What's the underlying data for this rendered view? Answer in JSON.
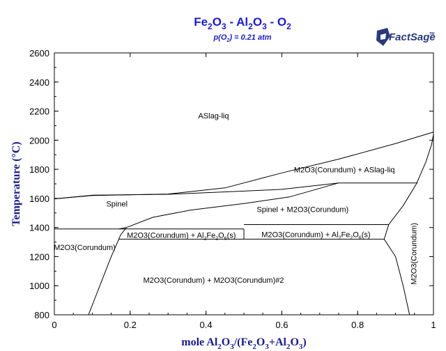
{
  "chart_data": {
    "type": "phase-diagram",
    "title": {
      "parts": [
        {
          "text": "Fe",
          "sub": false
        },
        {
          "text": "2",
          "sub": true
        },
        {
          "text": "O",
          "sub": false
        },
        {
          "text": "3",
          "sub": true
        },
        {
          "text": " - Al",
          "sub": false
        },
        {
          "text": "2",
          "sub": true
        },
        {
          "text": "O",
          "sub": false
        },
        {
          "text": "3",
          "sub": true
        },
        {
          "text": " - O",
          "sub": false
        },
        {
          "text": "2",
          "sub": true
        }
      ]
    },
    "subtitle": {
      "parts": [
        {
          "text": "p(O",
          "sub": false
        },
        {
          "text": "2",
          "sub": true
        },
        {
          "text": ") = 0.21 atm",
          "sub": false
        }
      ]
    },
    "logo": {
      "text": "FactSage",
      "tm": "TM"
    },
    "xlabel": {
      "parts": [
        {
          "text": "mole Al",
          "sub": false
        },
        {
          "text": "2",
          "sub": true
        },
        {
          "text": "O",
          "sub": false
        },
        {
          "text": "3",
          "sub": true
        },
        {
          "text": "/(Fe",
          "sub": false
        },
        {
          "text": "2",
          "sub": true
        },
        {
          "text": "O",
          "sub": false
        },
        {
          "text": "3",
          "sub": true
        },
        {
          "text": "+Al",
          "sub": false
        },
        {
          "text": "2",
          "sub": true
        },
        {
          "text": "O",
          "sub": false
        },
        {
          "text": "3",
          "sub": true
        },
        {
          "text": ")",
          "sub": false
        }
      ]
    },
    "ylabel": "Temperature (°C)",
    "xlim": [
      0,
      1
    ],
    "ylim": [
      800,
      2600
    ],
    "xticks": [
      0,
      0.2,
      0.4,
      0.6,
      0.8,
      1
    ],
    "xtick_labels": [
      "0",
      "0.2",
      "0.4",
      "0.6",
      "0.8",
      "1"
    ],
    "yticks": [
      800,
      1000,
      1200,
      1400,
      1600,
      1800,
      2000,
      2200,
      2400,
      2600
    ],
    "ytick_labels": [
      "800",
      "1000",
      "1200",
      "1400",
      "1600",
      "1800",
      "2000",
      "2200",
      "2400",
      "2600"
    ],
    "grid": false,
    "boundaries": [
      {
        "name": "liquidus-upper",
        "points": [
          [
            0,
            1597
          ],
          [
            0.1,
            1620
          ],
          [
            0.3,
            1630
          ],
          [
            0.45,
            1672
          ],
          [
            0.6,
            1775
          ],
          [
            0.75,
            1870
          ],
          [
            0.9,
            1977
          ],
          [
            1.0,
            2056
          ]
        ]
      },
      {
        "name": "spinel-liquid",
        "points": [
          [
            0,
            1597
          ],
          [
            0.1,
            1622
          ],
          [
            0.3,
            1628
          ],
          [
            0.5,
            1650
          ],
          [
            0.6,
            1662
          ],
          [
            0.75,
            1706
          ]
        ]
      },
      {
        "name": "corundum-liquid-isotherm",
        "points": [
          [
            0.75,
            1706
          ],
          [
            0.958,
            1706
          ]
        ]
      },
      {
        "name": "spinel-corundum-top",
        "points": [
          [
            0.19,
            1400
          ],
          [
            0.26,
            1470
          ],
          [
            0.36,
            1520
          ],
          [
            0.5,
            1565
          ],
          [
            0.62,
            1610
          ],
          [
            0.75,
            1706
          ]
        ]
      },
      {
        "name": "isotherm-1390",
        "points": [
          [
            0,
            1390
          ],
          [
            0.5,
            1390
          ]
        ]
      },
      {
        "name": "isotherm-1320",
        "points": [
          [
            0.17,
            1320
          ],
          [
            0.87,
            1320
          ]
        ]
      },
      {
        "name": "isotherm-1420",
        "points": [
          [
            0.5,
            1420
          ],
          [
            0.882,
            1420
          ]
        ]
      },
      {
        "name": "isotherm-1390-left",
        "points": [
          [
            0.5,
            1390
          ],
          [
            0.5,
            1320
          ]
        ]
      },
      {
        "name": "spinel-left-edge",
        "points": [
          [
            0.09,
            800
          ],
          [
            0.12,
            1000
          ],
          [
            0.15,
            1200
          ],
          [
            0.17,
            1320
          ],
          [
            0.175,
            1350
          ],
          [
            0.19,
            1400
          ]
        ]
      },
      {
        "name": "corundum-solvus-right",
        "points": [
          [
            0.937,
            800
          ],
          [
            0.92,
            1000
          ],
          [
            0.9,
            1200
          ],
          [
            0.87,
            1320
          ],
          [
            0.882,
            1420
          ],
          [
            0.92,
            1550
          ],
          [
            0.955,
            1700
          ],
          [
            0.98,
            1850
          ],
          [
            0.995,
            1970
          ],
          [
            1.0,
            2040
          ]
        ]
      },
      {
        "name": "spinel-corundum-left-kink",
        "points": [
          [
            0.17,
            1390
          ],
          [
            0.19,
            1400
          ]
        ]
      }
    ],
    "labels": [
      {
        "text": "ASlag-liq",
        "x": 0.42,
        "y": 2150,
        "rotate": false
      },
      {
        "text": "M2O3(Corundum) + ASlag-liq",
        "x": 0.765,
        "y": 1780,
        "rotate": false
      },
      {
        "text": "Spinel",
        "x": 0.165,
        "y": 1545,
        "rotate": false
      },
      {
        "text": "Spinel + M2O3(Corundum)",
        "x": 0.655,
        "y": 1505,
        "rotate": false
      },
      {
        "text": "M2O3(Corundum)",
        "x": 0.08,
        "y": 1245,
        "rotate": false
      },
      {
        "text": "M2O3(Corundum) + M2O3(Corundum)#2",
        "x": 0.42,
        "y": 1020,
        "rotate": false
      },
      {
        "text": "M2O3(Corundum)",
        "x": 0.955,
        "y": 1220,
        "rotate": true
      }
    ],
    "rich_labels": [
      {
        "parts": [
          {
            "text": "M2O3(Corundum) + Al",
            "sub": false
          },
          {
            "text": "2",
            "sub": true
          },
          {
            "text": "Fe",
            "sub": false
          },
          {
            "text": "2",
            "sub": true
          },
          {
            "text": "O",
            "sub": false
          },
          {
            "text": "6",
            "sub": true
          },
          {
            "text": "(s)",
            "sub": false
          }
        ],
        "x": 0.335,
        "y": 1347
      },
      {
        "parts": [
          {
            "text": "M2O3(Corundum) + Al",
            "sub": false
          },
          {
            "text": "2",
            "sub": true
          },
          {
            "text": "Fe",
            "sub": false
          },
          {
            "text": "2",
            "sub": true
          },
          {
            "text": "O",
            "sub": false
          },
          {
            "text": "6",
            "sub": true
          },
          {
            "text": "(s)",
            "sub": false
          }
        ],
        "x": 0.69,
        "y": 1352
      }
    ]
  }
}
